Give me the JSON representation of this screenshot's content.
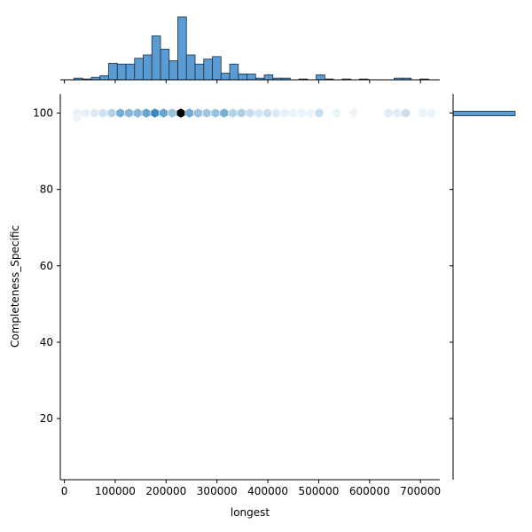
{
  "chart_data": {
    "type": "hexbin",
    "xlabel": "longest",
    "ylabel": "Completeness_Specific",
    "xlim": [
      -8000,
      738000
    ],
    "ylim": [
      4,
      105
    ],
    "x_ticks": [
      0,
      100000,
      200000,
      300000,
      400000,
      500000,
      600000,
      700000
    ],
    "x_tick_labels": [
      "0",
      "100000",
      "200000",
      "300000",
      "400000",
      "500000",
      "600000",
      "700000"
    ],
    "y_ticks": [
      20,
      40,
      60,
      80,
      100
    ],
    "y_tick_labels": [
      "20",
      "40",
      "60",
      "80",
      "100"
    ],
    "colors": {
      "bar_fill": "#5a9bd4",
      "bar_edge": "#1f2f3f",
      "hex_dark": "#000000",
      "hex_base": "#1f77b4"
    },
    "hex_bins": {
      "y": 100,
      "points": [
        {
          "x": 25000,
          "count": 0.08
        },
        {
          "x": 42000,
          "count": 0.08
        },
        {
          "x": 59000,
          "count": 0.12
        },
        {
          "x": 76000,
          "count": 0.18
        },
        {
          "x": 93000,
          "count": 0.3
        },
        {
          "x": 110000,
          "count": 0.55
        },
        {
          "x": 127000,
          "count": 0.48
        },
        {
          "x": 144000,
          "count": 0.5
        },
        {
          "x": 161000,
          "count": 0.62
        },
        {
          "x": 178000,
          "count": 0.82
        },
        {
          "x": 195000,
          "count": 0.62
        },
        {
          "x": 212000,
          "count": 0.42
        },
        {
          "x": 229000,
          "count": 1.0
        },
        {
          "x": 246000,
          "count": 0.58
        },
        {
          "x": 263000,
          "count": 0.42
        },
        {
          "x": 280000,
          "count": 0.38
        },
        {
          "x": 297000,
          "count": 0.42
        },
        {
          "x": 314000,
          "count": 0.55
        },
        {
          "x": 331000,
          "count": 0.3
        },
        {
          "x": 348000,
          "count": 0.32
        },
        {
          "x": 365000,
          "count": 0.22
        },
        {
          "x": 382000,
          "count": 0.15
        },
        {
          "x": 399000,
          "count": 0.2
        },
        {
          "x": 416000,
          "count": 0.12
        },
        {
          "x": 433000,
          "count": 0.08
        },
        {
          "x": 450000,
          "count": 0.06
        },
        {
          "x": 467000,
          "count": 0.06
        },
        {
          "x": 484000,
          "count": 0.06
        },
        {
          "x": 501000,
          "count": 0.22
        },
        {
          "x": 535000,
          "count": 0.06
        },
        {
          "x": 569000,
          "count": 0.05
        },
        {
          "x": 637000,
          "count": 0.1
        },
        {
          "x": 654000,
          "count": 0.1
        },
        {
          "x": 671000,
          "count": 0.2
        },
        {
          "x": 705000,
          "count": 0.06
        },
        {
          "x": 722000,
          "count": 0.06
        }
      ],
      "low_points": [
        {
          "x": 25000,
          "y": 98.8,
          "count": 0.05
        }
      ]
    },
    "x_histogram": {
      "bin_width": 17000,
      "bins": [
        {
          "start": 19000,
          "count": 1
        },
        {
          "start": 36000,
          "count": 0.5
        },
        {
          "start": 53000,
          "count": 1.5
        },
        {
          "start": 70000,
          "count": 2.5
        },
        {
          "start": 87000,
          "count": 10
        },
        {
          "start": 104000,
          "count": 9.5
        },
        {
          "start": 121000,
          "count": 9.5
        },
        {
          "start": 138000,
          "count": 13
        },
        {
          "start": 155000,
          "count": 15
        },
        {
          "start": 172000,
          "count": 26.5
        },
        {
          "start": 189000,
          "count": 18.5
        },
        {
          "start": 206000,
          "count": 11.5
        },
        {
          "start": 223000,
          "count": 38
        },
        {
          "start": 240000,
          "count": 15
        },
        {
          "start": 257000,
          "count": 9.5
        },
        {
          "start": 274000,
          "count": 12.5
        },
        {
          "start": 291000,
          "count": 14
        },
        {
          "start": 308000,
          "count": 4
        },
        {
          "start": 325000,
          "count": 9.5
        },
        {
          "start": 342000,
          "count": 3.5
        },
        {
          "start": 359000,
          "count": 3.5
        },
        {
          "start": 376000,
          "count": 1
        },
        {
          "start": 393000,
          "count": 3
        },
        {
          "start": 410000,
          "count": 1
        },
        {
          "start": 427000,
          "count": 1
        },
        {
          "start": 461000,
          "count": 0.5
        },
        {
          "start": 495000,
          "count": 3
        },
        {
          "start": 512000,
          "count": 0.5
        },
        {
          "start": 546000,
          "count": 0.5
        },
        {
          "start": 580000,
          "count": 0.5
        },
        {
          "start": 648000,
          "count": 1
        },
        {
          "start": 665000,
          "count": 1
        },
        {
          "start": 699000,
          "count": 0.5
        }
      ],
      "max_count": 38
    },
    "y_histogram": {
      "bins": [
        {
          "start": 99.3,
          "end": 100.5,
          "count": 1
        }
      ],
      "max_count": 1
    }
  }
}
